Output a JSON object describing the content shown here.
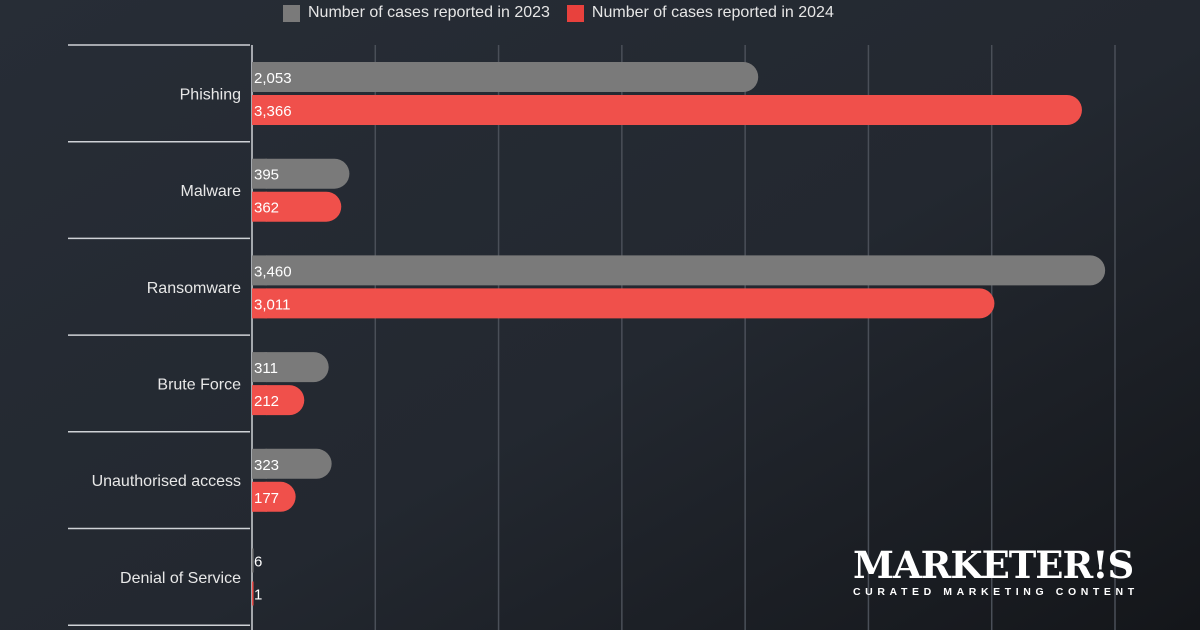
{
  "chart_data": {
    "type": "bar",
    "orientation": "horizontal",
    "categories": [
      "Phishing",
      "Malware",
      "Ransomware",
      "Brute Force",
      "Unauthorised access",
      "Denial of Service"
    ],
    "series": [
      {
        "name": "Number of cases reported in 2023",
        "color": "#7a7a7a",
        "values": [
          2053,
          395,
          3460,
          311,
          323,
          6
        ],
        "labels": [
          "2,053",
          "395",
          "3,460",
          "311",
          "323",
          "6"
        ]
      },
      {
        "name": "Number of cases reported in 2024",
        "color": "#f0504b",
        "values": [
          3366,
          362,
          3011,
          212,
          177,
          1
        ],
        "labels": [
          "3,366",
          "362",
          "3,011",
          "212",
          "177",
          "1"
        ]
      }
    ],
    "xlim": [
      0,
      3500
    ],
    "grid_step": 500,
    "grid": true,
    "legend_position": "top"
  },
  "logo": {
    "name": "MARKETER!S",
    "tagline": "CURATED MARKETING CONTENT"
  }
}
